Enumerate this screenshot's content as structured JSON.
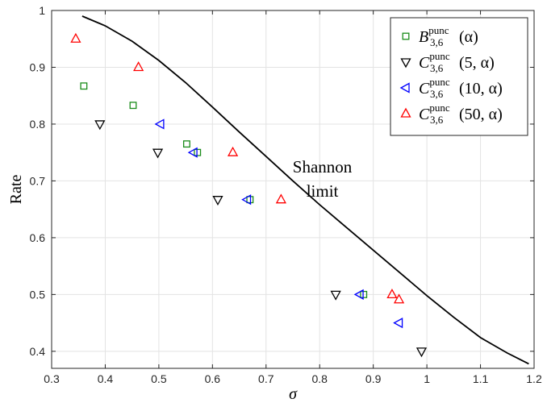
{
  "chart_data": {
    "type": "scatter",
    "xlabel": "σ",
    "ylabel": "Rate",
    "xlim": [
      0.3,
      1.2
    ],
    "ylim": [
      0.37,
      1.0
    ],
    "xticks": [
      "0.3",
      "0.4",
      "0.5",
      "0.6",
      "0.7",
      "0.8",
      "0.9",
      "1",
      "1.1",
      "1.2"
    ],
    "yticks": [
      "0.4",
      "0.5",
      "0.6",
      "0.7",
      "0.8",
      "0.9",
      "1"
    ],
    "grid": true,
    "legend_position": "top-right",
    "annotation": {
      "line1": "Shannon",
      "line2": "limit",
      "x": 0.805,
      "y": 0.715
    },
    "series": [
      {
        "legend_main": "B",
        "legend_sub": "3,6",
        "legend_sup": "punc",
        "legend_arg": "(α)",
        "marker": "square",
        "color": "#1a8c1a",
        "points": [
          [
            0.36,
            0.867
          ],
          [
            0.452,
            0.833
          ],
          [
            0.552,
            0.765
          ],
          [
            0.572,
            0.75
          ],
          [
            0.67,
            0.667
          ],
          [
            0.882,
            0.5
          ]
        ]
      },
      {
        "legend_main": "C",
        "legend_sub": "3,6",
        "legend_sup": "punc",
        "legend_arg": "(5, α)",
        "marker": "triangle-down",
        "color": "#000000",
        "points": [
          [
            0.39,
            0.8
          ],
          [
            0.498,
            0.75
          ],
          [
            0.61,
            0.667
          ],
          [
            0.83,
            0.5
          ],
          [
            0.99,
            0.4
          ]
        ]
      },
      {
        "legend_main": "C",
        "legend_sub": "3,6",
        "legend_sup": "punc",
        "legend_arg": "(10, α)",
        "marker": "triangle-left",
        "color": "#0000ff",
        "points": [
          [
            0.503,
            0.8
          ],
          [
            0.565,
            0.75
          ],
          [
            0.665,
            0.667
          ],
          [
            0.875,
            0.5
          ],
          [
            0.948,
            0.45
          ]
        ]
      },
      {
        "legend_main": "C",
        "legend_sub": "3,6",
        "legend_sup": "punc",
        "legend_arg": "(50, α)",
        "marker": "triangle-up",
        "color": "#ff0000",
        "points": [
          [
            0.345,
            0.95
          ],
          [
            0.462,
            0.9
          ],
          [
            0.638,
            0.75
          ],
          [
            0.728,
            0.667
          ],
          [
            0.935,
            0.5
          ],
          [
            0.948,
            0.491
          ]
        ]
      }
    ],
    "shannon_curve": [
      [
        0.357,
        0.99
      ],
      [
        0.4,
        0.973
      ],
      [
        0.45,
        0.946
      ],
      [
        0.5,
        0.912
      ],
      [
        0.55,
        0.873
      ],
      [
        0.6,
        0.83
      ],
      [
        0.65,
        0.786
      ],
      [
        0.7,
        0.743
      ],
      [
        0.75,
        0.7
      ],
      [
        0.8,
        0.658
      ],
      [
        0.85,
        0.618
      ],
      [
        0.9,
        0.578
      ],
      [
        0.95,
        0.538
      ],
      [
        1.0,
        0.498
      ],
      [
        1.05,
        0.46
      ],
      [
        1.1,
        0.424
      ],
      [
        1.15,
        0.397
      ],
      [
        1.19,
        0.378
      ]
    ]
  }
}
